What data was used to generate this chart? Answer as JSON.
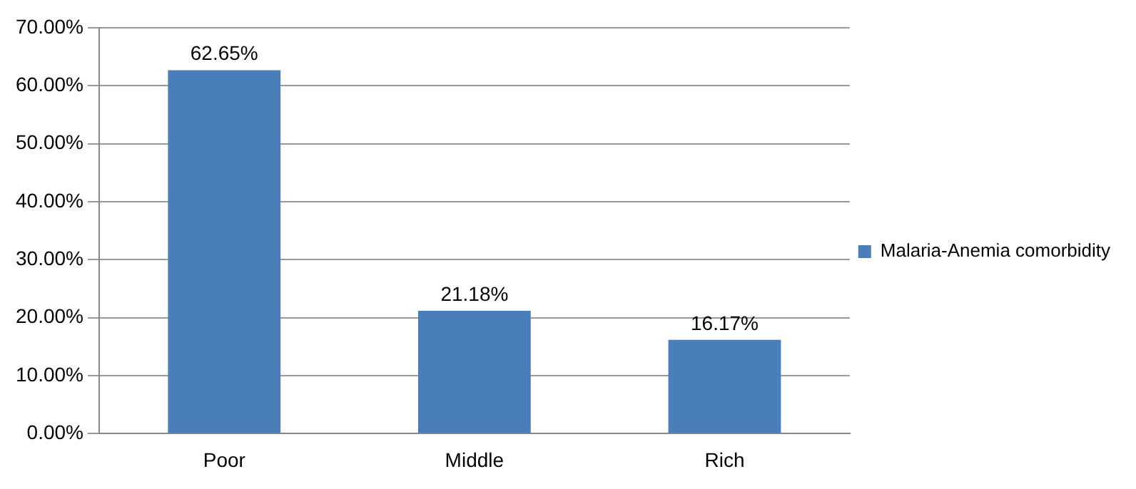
{
  "chart_data": {
    "type": "bar",
    "categories": [
      "Poor",
      "Middle",
      "Rich"
    ],
    "series": [
      {
        "name": "Malaria-Anemia comorbidity",
        "color": "#4a7ebb",
        "values": [
          62.65,
          21.18,
          16.17
        ],
        "value_labels": [
          "62.65%",
          "21.18%",
          "16.17%"
        ]
      }
    ],
    "ylim": [
      0,
      70
    ],
    "yticks": [
      {
        "value": 0,
        "label": "0.00%"
      },
      {
        "value": 10,
        "label": "10.00%"
      },
      {
        "value": 20,
        "label": "20.00%"
      },
      {
        "value": 30,
        "label": "30.00%"
      },
      {
        "value": 40,
        "label": "40.00%"
      },
      {
        "value": 50,
        "label": "50.00%"
      },
      {
        "value": 60,
        "label": "60.00%"
      },
      {
        "value": 70,
        "label": "70.00%"
      }
    ],
    "grid": "y",
    "legend": "right"
  }
}
